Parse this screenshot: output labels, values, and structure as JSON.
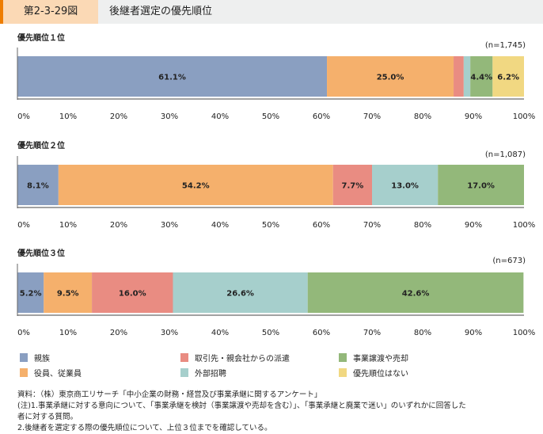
{
  "header": {
    "figure_number": "第2-3-29図",
    "title": "後継者選定の優先順位"
  },
  "chart_data": [
    {
      "type": "bar",
      "orientation": "horizontal-stacked",
      "title": "優先順位１位",
      "n_label": "(n=1,745)",
      "categories": [
        "親族",
        "役員、従業員",
        "取引先・親会社からの派遣",
        "外部招聘",
        "事業譲渡や売却",
        "優先順位はない"
      ],
      "values": [
        61.1,
        25.0,
        2.0,
        1.3,
        4.4,
        6.2
      ],
      "labels": [
        "61.1%",
        "25.0%",
        "",
        "",
        "4.4%",
        "6.2%"
      ],
      "xlim": [
        0,
        100
      ]
    },
    {
      "type": "bar",
      "orientation": "horizontal-stacked",
      "title": "優先順位２位",
      "n_label": "(n=1,087)",
      "categories": [
        "親族",
        "役員、従業員",
        "取引先・親会社からの派遣",
        "外部招聘",
        "事業譲渡や売却"
      ],
      "values": [
        8.1,
        54.2,
        7.7,
        13.0,
        17.0
      ],
      "labels": [
        "8.1%",
        "54.2%",
        "7.7%",
        "13.0%",
        "17.0%"
      ],
      "xlim": [
        0,
        100
      ]
    },
    {
      "type": "bar",
      "orientation": "horizontal-stacked",
      "title": "優先順位３位",
      "n_label": "(n=673)",
      "categories": [
        "親族",
        "役員、従業員",
        "取引先・親会社からの派遣",
        "外部招聘",
        "事業譲渡や売却"
      ],
      "values": [
        5.2,
        9.5,
        16.0,
        26.6,
        42.6
      ],
      "labels": [
        "5.2%",
        "9.5%",
        "16.0%",
        "26.6%",
        "42.6%"
      ],
      "xlim": [
        0,
        100
      ]
    }
  ],
  "ticks": [
    "0%",
    "10%",
    "20%",
    "30%",
    "40%",
    "50%",
    "60%",
    "70%",
    "80%",
    "90%",
    "100%"
  ],
  "legend": [
    {
      "label": "親族",
      "color": "#8a9fc1"
    },
    {
      "label": "取引先・親会社からの派遣",
      "color": "#e98c82"
    },
    {
      "label": "事業譲渡や売却",
      "color": "#93b87a"
    },
    {
      "label": "役員、従業員",
      "color": "#f5b06c"
    },
    {
      "label": "外部招聘",
      "color": "#a6cfcc"
    },
    {
      "label": "優先順位はない",
      "color": "#f1d882"
    }
  ],
  "notes": [
    "資料：（株）東京商工リサーチ「中小企業の財務・経営及び事業承継に関するアンケート」",
    "(注)1.事業承継に対する意向について、「事業承継を検討（事業譲渡や売却を含む）」、「事業承継と廃業で迷い」のいずれかに回答した",
    "者に対する質問。",
    "2.後継者を選定する際の優先順位について、上位３位までを確認している。"
  ]
}
